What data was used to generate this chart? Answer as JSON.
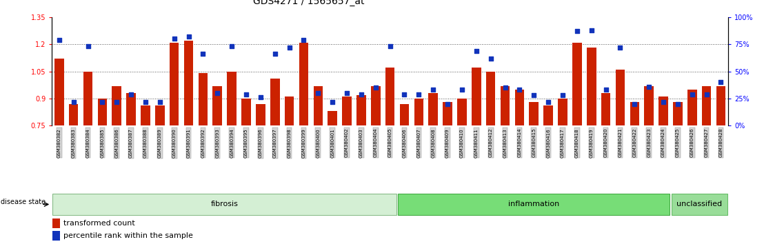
{
  "title": "GDS4271 / 1565657_at",
  "samples": [
    "GSM380382",
    "GSM380383",
    "GSM380384",
    "GSM380385",
    "GSM380386",
    "GSM380387",
    "GSM380388",
    "GSM380389",
    "GSM380390",
    "GSM380391",
    "GSM380392",
    "GSM380393",
    "GSM380394",
    "GSM380395",
    "GSM380396",
    "GSM380397",
    "GSM380398",
    "GSM380399",
    "GSM380400",
    "GSM380401",
    "GSM380402",
    "GSM380403",
    "GSM380404",
    "GSM380405",
    "GSM380406",
    "GSM380407",
    "GSM380408",
    "GSM380409",
    "GSM380410",
    "GSM380411",
    "GSM380412",
    "GSM380413",
    "GSM380414",
    "GSM380415",
    "GSM380416",
    "GSM380417",
    "GSM380418",
    "GSM380419",
    "GSM380420",
    "GSM380421",
    "GSM380422",
    "GSM380423",
    "GSM380424",
    "GSM380425",
    "GSM380426",
    "GSM380427",
    "GSM380428"
  ],
  "bar_values": [
    1.12,
    0.87,
    1.05,
    0.9,
    0.97,
    0.93,
    0.86,
    0.86,
    1.21,
    1.22,
    1.04,
    0.97,
    1.05,
    0.9,
    0.87,
    1.01,
    0.91,
    1.21,
    0.97,
    0.83,
    0.91,
    0.92,
    0.97,
    1.07,
    0.87,
    0.9,
    0.93,
    0.88,
    0.9,
    1.07,
    1.05,
    0.97,
    0.95,
    0.88,
    0.86,
    0.9,
    1.21,
    1.18,
    0.93,
    1.06,
    0.88,
    0.97,
    0.91,
    0.88,
    0.95,
    0.97,
    0.97
  ],
  "dot_pcts": [
    79,
    22,
    73,
    22,
    22,
    29,
    22,
    22,
    80,
    82,
    66,
    30,
    73,
    29,
    26,
    66,
    72,
    79,
    30,
    22,
    30,
    29,
    35,
    73,
    29,
    29,
    33,
    20,
    33,
    69,
    62,
    35,
    33,
    28,
    22,
    28,
    87,
    88,
    33,
    72,
    20,
    36,
    22,
    20,
    29,
    29,
    40
  ],
  "ylim_left": [
    0.75,
    1.35
  ],
  "ylim_right": [
    0,
    100
  ],
  "yticks_left": [
    0.75,
    0.9,
    1.05,
    1.2,
    1.35
  ],
  "ytick_labels_left": [
    "0.75",
    "0.9",
    "1.05",
    "1.2",
    "1.35"
  ],
  "yticks_right": [
    0,
    25,
    50,
    75,
    100
  ],
  "ytick_labels_right": [
    "0%",
    "25%",
    "50%",
    "75%",
    "100%"
  ],
  "hgrid_values": [
    0.9,
    1.05,
    1.2
  ],
  "bar_color": "#cc2200",
  "dot_color": "#1133bb",
  "group_info": [
    {
      "label": "fibrosis",
      "start": 0,
      "end": 24,
      "facecolor": "#d4efd4",
      "edgecolor": "#88bb88"
    },
    {
      "label": "inflammation",
      "start": 24,
      "end": 43,
      "facecolor": "#77dd77",
      "edgecolor": "#44aa44"
    },
    {
      "label": "unclassified",
      "start": 43,
      "end": 47,
      "facecolor": "#99dd99",
      "edgecolor": "#66bb66"
    }
  ],
  "legend_labels": [
    "transformed count",
    "percentile rank within the sample"
  ],
  "disease_state_label": "disease state"
}
